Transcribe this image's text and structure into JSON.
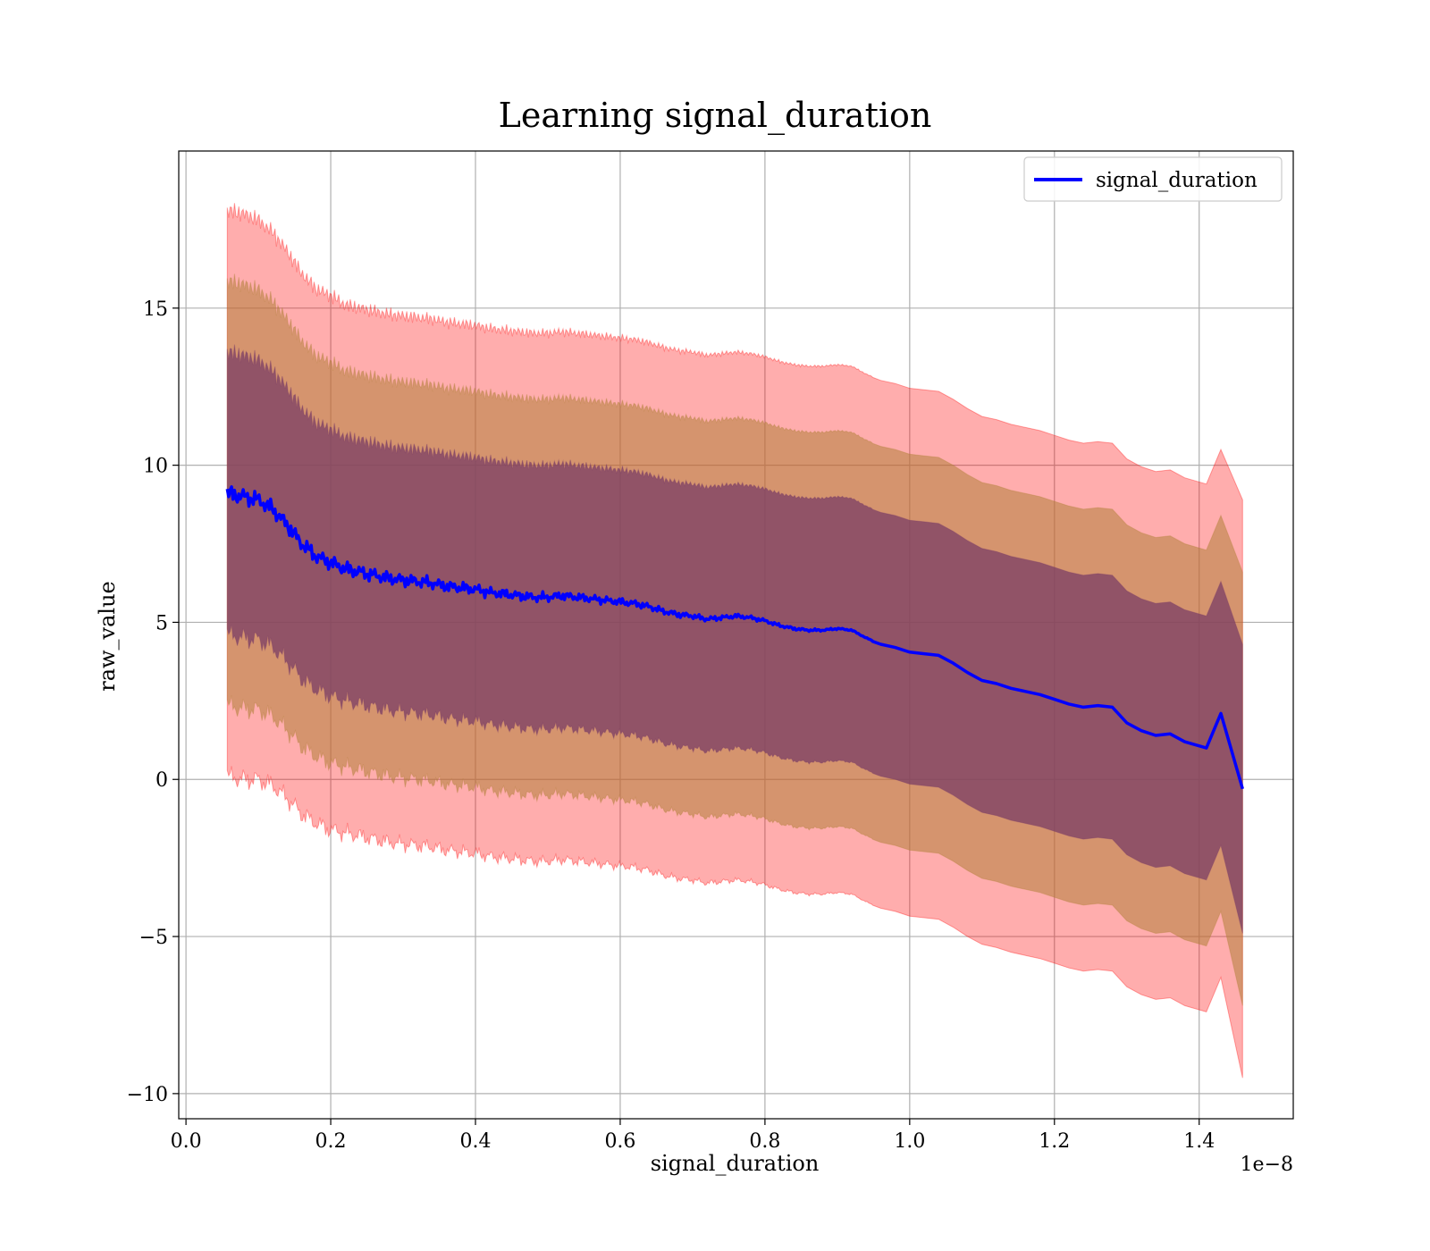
{
  "chart_data": {
    "type": "line",
    "title": "Learning signal_duration",
    "xlabel": "signal_duration",
    "ylabel": "raw_value",
    "x_offset_label": "1e−8",
    "xlim": [
      -0.01,
      1.53
    ],
    "ylim": [
      -10.8,
      20.0
    ],
    "x_ticks": [
      0.0,
      0.2,
      0.4,
      0.6,
      0.8,
      1.0,
      1.2,
      1.4
    ],
    "x_tick_labels": [
      "0.0",
      "0.2",
      "0.4",
      "0.6",
      "0.8",
      "1.0",
      "1.2",
      "1.4"
    ],
    "y_ticks": [
      -10,
      -5,
      0,
      5,
      10,
      15
    ],
    "y_tick_labels": [
      "−10",
      "−5",
      "0",
      "5",
      "10",
      "15"
    ],
    "grid": true,
    "legend_position": "top-right",
    "series_line": {
      "name": "signal_duration",
      "color": "#0000ff"
    },
    "band_colors": {
      "outer": "#ff0000",
      "middle": "#b3803a",
      "inner": "#7a3d66"
    },
    "x": [
      0.057,
      0.08,
      0.1,
      0.12,
      0.14,
      0.16,
      0.18,
      0.2,
      0.22,
      0.24,
      0.26,
      0.28,
      0.3,
      0.32,
      0.34,
      0.36,
      0.38,
      0.4,
      0.42,
      0.44,
      0.46,
      0.48,
      0.5,
      0.52,
      0.54,
      0.56,
      0.58,
      0.6,
      0.62,
      0.64,
      0.66,
      0.68,
      0.7,
      0.72,
      0.74,
      0.76,
      0.78,
      0.8,
      0.82,
      0.84,
      0.86,
      0.88,
      0.9,
      0.92,
      0.94,
      0.96,
      0.98,
      1.0,
      1.02,
      1.04,
      1.06,
      1.08,
      1.1,
      1.12,
      1.14,
      1.16,
      1.18,
      1.2,
      1.22,
      1.24,
      1.26,
      1.28,
      1.3,
      1.32,
      1.34,
      1.36,
      1.38,
      1.41,
      1.43,
      1.46
    ],
    "mean": [
      9.1,
      9.0,
      8.9,
      8.6,
      8.1,
      7.5,
      7.1,
      6.9,
      6.7,
      6.6,
      6.5,
      6.4,
      6.35,
      6.3,
      6.25,
      6.15,
      6.1,
      6.05,
      5.95,
      5.9,
      5.85,
      5.8,
      5.8,
      5.85,
      5.8,
      5.75,
      5.7,
      5.65,
      5.6,
      5.5,
      5.35,
      5.25,
      5.2,
      5.1,
      5.15,
      5.2,
      5.15,
      5.05,
      4.9,
      4.8,
      4.75,
      4.75,
      4.8,
      4.75,
      4.5,
      4.3,
      4.2,
      4.05,
      4.0,
      3.95,
      3.7,
      3.4,
      3.15,
      3.05,
      2.9,
      2.8,
      2.7,
      2.55,
      2.4,
      2.3,
      2.35,
      2.3,
      1.8,
      1.55,
      1.4,
      1.45,
      1.2,
      1.0,
      2.1,
      -0.3
    ],
    "sigma": [
      4.5,
      4.5,
      4.45,
      4.4,
      4.35,
      4.3,
      4.25,
      4.25,
      4.2,
      4.2,
      4.2,
      4.2,
      4.2,
      4.2,
      4.2,
      4.2,
      4.2,
      4.2,
      4.2,
      4.2,
      4.2,
      4.2,
      4.2,
      4.2,
      4.2,
      4.2,
      4.2,
      4.2,
      4.2,
      4.2,
      4.2,
      4.2,
      4.2,
      4.2,
      4.2,
      4.2,
      4.2,
      4.2,
      4.2,
      4.2,
      4.2,
      4.2,
      4.2,
      4.2,
      4.2,
      4.2,
      4.2,
      4.2,
      4.2,
      4.2,
      4.2,
      4.2,
      4.2,
      4.2,
      4.2,
      4.2,
      4.2,
      4.2,
      4.2,
      4.2,
      4.2,
      4.2,
      4.2,
      4.2,
      4.2,
      4.2,
      4.2,
      4.2,
      4.2,
      4.6
    ]
  }
}
